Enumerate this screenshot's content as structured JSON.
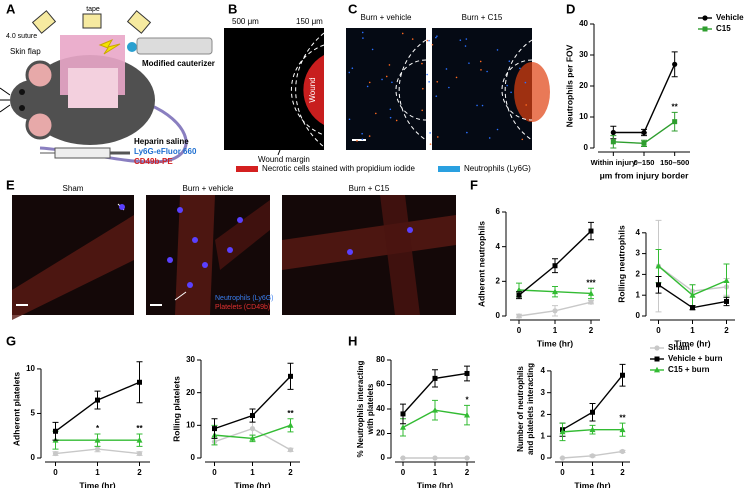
{
  "panels": [
    "A",
    "B",
    "C",
    "D",
    "E",
    "F",
    "G",
    "H"
  ],
  "panel_a": {
    "tape": "tape",
    "suture": "4.0 suture",
    "flap": "Skin flap",
    "cauterizer": "Modified cauterizer",
    "saline": "Heparin saline",
    "ly6g": "Ly6G-eFluor 660",
    "cd49b": "CD49b-PE"
  },
  "panel_b": {
    "r500": "500 μm",
    "r150": "150 μm",
    "wound": "Wound",
    "margin": "Wound margin"
  },
  "panel_c": {
    "left": "Burn + vehicle",
    "right": "Burn + C15"
  },
  "panel_bc_legend": {
    "necrotic": "Necrotic cells stained with propidium iodide",
    "neutrophils": "Neutrophils (Ly6G)"
  },
  "panel_e": {
    "sham": "Sham",
    "vehicle": "Burn + vehicle",
    "c15": "Burn + C15",
    "neutrophils": "Neutrophils (Ly6G)",
    "platelets": "Platelets (CD49b)"
  },
  "chart_data": [
    {
      "type": "line",
      "ylabel": "Neutrophils per FOV",
      "xlabel": "μm from injury border",
      "categories": [
        "Within injury",
        "0–150",
        "150–500"
      ],
      "ylim": [
        0,
        40
      ],
      "yticks": [
        0,
        10,
        20,
        30,
        40
      ],
      "series": [
        {
          "name": "Vehicle",
          "color": "#000000",
          "marker": "circle",
          "values": [
            5,
            5,
            27
          ],
          "errors": [
            2,
            1,
            4
          ]
        },
        {
          "name": "C15",
          "color": "#2e9e2e",
          "marker": "square",
          "values": [
            2,
            1.5,
            8.5
          ],
          "errors": [
            2,
            1,
            3
          ],
          "stars": [
            null,
            "**",
            "**"
          ]
        }
      ]
    },
    {
      "type": "line",
      "ylabel": "Adherent neutrophils",
      "xlabel": "Time (hr)",
      "x": [
        0,
        1,
        2
      ],
      "xlim": [
        -0.25,
        2.25
      ],
      "xticks": [
        0,
        1,
        2
      ],
      "ylim": [
        0,
        6
      ],
      "yticks": [
        0,
        2,
        4,
        6
      ],
      "series": [
        {
          "color": "#c8c8c8",
          "marker": "circle",
          "values": [
            0,
            0.3,
            0.8
          ],
          "errors": [
            0.1,
            0.3,
            0.1
          ]
        },
        {
          "color": "#33bb33",
          "marker": "triangle",
          "values": [
            1.5,
            1.4,
            1.3
          ],
          "errors": [
            0.4,
            0.3,
            0.3
          ],
          "stars": [
            null,
            null,
            "***"
          ]
        },
        {
          "color": "#000000",
          "marker": "square",
          "values": [
            1.2,
            2.9,
            4.9
          ],
          "errors": [
            0.2,
            0.4,
            0.5
          ]
        }
      ]
    },
    {
      "type": "line",
      "ylabel": "Rolling neutrophils",
      "xlabel": "Time (hr)",
      "x": [
        0,
        1,
        2
      ],
      "xlim": [
        -0.25,
        2.25
      ],
      "xticks": [
        0,
        1,
        2
      ],
      "ylim": [
        0,
        5
      ],
      "yticks": [
        0,
        1,
        2,
        3,
        4
      ],
      "series": [
        {
          "color": "#c8c8c8",
          "marker": "circle",
          "values": [
            2.4,
            1.2,
            1.4
          ],
          "errors": [
            2.2,
            0.3,
            0.4
          ]
        },
        {
          "color": "#33bb33",
          "marker": "triangle",
          "values": [
            2.4,
            1.0,
            1.7
          ],
          "errors": [
            0.8,
            0.5,
            0.8
          ]
        },
        {
          "color": "#000000",
          "marker": "square",
          "values": [
            1.5,
            0.4,
            0.7
          ],
          "errors": [
            0.4,
            0.1,
            0.2
          ]
        }
      ]
    },
    {
      "type": "line",
      "ylabel": "Adherent platelets",
      "xlabel": "Time (hr)",
      "x": [
        0,
        1,
        2
      ],
      "xlim": [
        -0.25,
        2.25
      ],
      "xticks": [
        0,
        1,
        2
      ],
      "ylim": [
        0,
        11
      ],
      "yticks": [
        0,
        5,
        10
      ],
      "series": [
        {
          "color": "#c8c8c8",
          "marker": "circle",
          "values": [
            0.5,
            1,
            0.5
          ],
          "errors": [
            0.2,
            0.3,
            0.2
          ]
        },
        {
          "color": "#33bb33",
          "marker": "triangle",
          "values": [
            2,
            2,
            2
          ],
          "errors": [
            1,
            0.7,
            0.7
          ],
          "stars": [
            null,
            "*",
            "**"
          ]
        },
        {
          "color": "#000000",
          "marker": "square",
          "values": [
            3,
            6.5,
            8.5
          ],
          "errors": [
            1,
            1,
            2.3
          ]
        }
      ]
    },
    {
      "type": "line",
      "ylabel": "Rolling platelets",
      "xlabel": "Time (hr)",
      "x": [
        0,
        1,
        2
      ],
      "xlim": [
        -0.25,
        2.25
      ],
      "xticks": [
        0,
        1,
        2
      ],
      "ylim": [
        0,
        30
      ],
      "yticks": [
        0,
        10,
        20,
        30
      ],
      "series": [
        {
          "color": "#c8c8c8",
          "marker": "circle",
          "values": [
            5,
            9,
            2.5
          ],
          "errors": [
            1,
            2,
            0.5
          ]
        },
        {
          "color": "#33bb33",
          "marker": "triangle",
          "values": [
            7,
            6,
            10
          ],
          "errors": [
            3,
            1,
            2
          ],
          "stars": [
            null,
            null,
            "**"
          ]
        },
        {
          "color": "#000000",
          "marker": "square",
          "values": [
            9,
            13,
            25
          ],
          "errors": [
            3,
            2,
            4
          ]
        }
      ]
    },
    {
      "type": "line",
      "ylabel": [
        "% Neutrophils interacting",
        "with platelets"
      ],
      "xlabel": "Time (hr)",
      "x": [
        0,
        1,
        2
      ],
      "xlim": [
        -0.25,
        2.25
      ],
      "xticks": [
        0,
        1,
        2
      ],
      "ylim": [
        0,
        80
      ],
      "yticks": [
        0,
        20,
        40,
        60,
        80
      ],
      "series": [
        {
          "color": "#c8c8c8",
          "marker": "circle",
          "values": [
            0,
            0,
            0
          ],
          "errors": [
            0,
            0,
            0
          ]
        },
        {
          "color": "#33bb33",
          "marker": "triangle",
          "values": [
            25,
            39,
            35
          ],
          "errors": [
            7,
            8,
            8
          ],
          "stars": [
            null,
            null,
            "*"
          ]
        },
        {
          "color": "#000000",
          "marker": "square",
          "values": [
            36,
            65,
            69
          ],
          "errors": [
            8,
            7,
            6
          ]
        }
      ]
    },
    {
      "type": "line",
      "ylabel": [
        "Number of neutrophils",
        "and platelets interacting"
      ],
      "xlabel": "Time (hr)",
      "x": [
        0,
        1,
        2
      ],
      "xlim": [
        -0.25,
        2.25
      ],
      "xticks": [
        0,
        1,
        2
      ],
      "ylim": [
        0,
        4.5
      ],
      "yticks": [
        0,
        1,
        2,
        3,
        4
      ],
      "series": [
        {
          "name": "Sham",
          "color": "#c8c8c8",
          "marker": "circle",
          "values": [
            0,
            0.1,
            0.3
          ],
          "errors": [
            0,
            0.05,
            0.05
          ]
        },
        {
          "name": "Vehicle + burn",
          "color": "#000000",
          "marker": "square",
          "values": [
            1.3,
            2.1,
            3.8
          ],
          "errors": [
            0.3,
            0.4,
            0.5
          ]
        },
        {
          "name": "C15 + burn",
          "color": "#33bb33",
          "marker": "triangle",
          "values": [
            1.2,
            1.3,
            1.3
          ],
          "errors": [
            0.4,
            0.2,
            0.3
          ],
          "stars": [
            null,
            null,
            "**"
          ]
        }
      ]
    }
  ]
}
